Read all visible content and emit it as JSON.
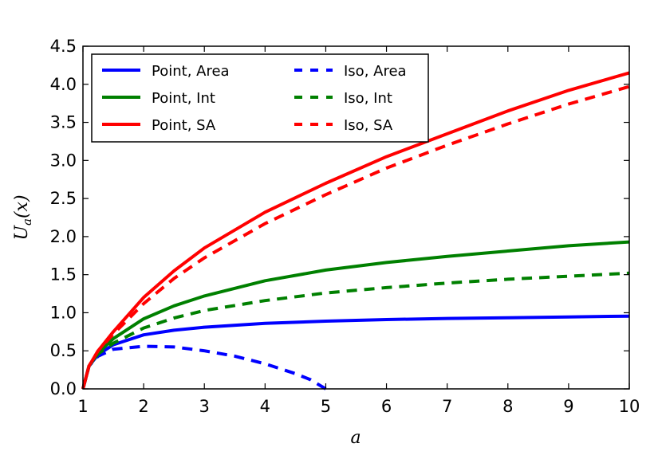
{
  "chart_data": {
    "type": "line",
    "title": "",
    "xlabel": "a",
    "ylabel": {
      "main": "U",
      "sub": "a",
      "arg": "(x)"
    },
    "xlim": [
      1,
      10
    ],
    "ylim": [
      0,
      4.5
    ],
    "xticks": [
      1,
      2,
      3,
      4,
      5,
      6,
      7,
      8,
      9,
      10
    ],
    "yticks": [
      "0.0",
      "0.5",
      "1.0",
      "1.5",
      "2.0",
      "2.5",
      "3.0",
      "3.5",
      "4.0",
      "4.5"
    ],
    "grid": false,
    "legend_position": "top-left",
    "series": [
      {
        "name": "Point, Area",
        "color": "#0000ff",
        "dash": "solid",
        "x": [
          1,
          1.1,
          1.25,
          1.5,
          2,
          2.5,
          3,
          4,
          5,
          6,
          7,
          8,
          9,
          10
        ],
        "y": [
          0,
          0.3,
          0.45,
          0.58,
          0.71,
          0.77,
          0.81,
          0.86,
          0.89,
          0.91,
          0.925,
          0.935,
          0.945,
          0.955
        ]
      },
      {
        "name": "Point, Int",
        "color": "#008000",
        "dash": "solid",
        "x": [
          1,
          1.1,
          1.25,
          1.5,
          2,
          2.5,
          3,
          4,
          5,
          6,
          7,
          8,
          9,
          10
        ],
        "y": [
          0,
          0.3,
          0.47,
          0.66,
          0.92,
          1.09,
          1.22,
          1.42,
          1.56,
          1.66,
          1.74,
          1.81,
          1.88,
          1.93
        ]
      },
      {
        "name": "Point, SA",
        "color": "#ff0000",
        "dash": "solid",
        "x": [
          1,
          1.1,
          1.25,
          1.5,
          2,
          2.5,
          3,
          4,
          5,
          6,
          7,
          8,
          9,
          10
        ],
        "y": [
          0,
          0.3,
          0.5,
          0.75,
          1.2,
          1.55,
          1.85,
          2.32,
          2.7,
          3.05,
          3.35,
          3.65,
          3.92,
          4.15
        ]
      },
      {
        "name": "Iso, Area",
        "color": "#0000ff",
        "dash": "dashed",
        "x": [
          1,
          1.1,
          1.25,
          1.5,
          2,
          2.5,
          3,
          3.5,
          4,
          4.5,
          4.75,
          5
        ],
        "y": [
          0,
          0.3,
          0.43,
          0.52,
          0.56,
          0.55,
          0.5,
          0.43,
          0.33,
          0.2,
          0.12,
          0
        ]
      },
      {
        "name": "Iso, Int",
        "color": "#008000",
        "dash": "dashed",
        "x": [
          1,
          1.1,
          1.25,
          1.5,
          2,
          2.5,
          3,
          4,
          5,
          6,
          7,
          8,
          9,
          10
        ],
        "y": [
          0,
          0.3,
          0.46,
          0.6,
          0.8,
          0.93,
          1.03,
          1.16,
          1.26,
          1.33,
          1.39,
          1.44,
          1.48,
          1.52
        ]
      },
      {
        "name": "Iso, SA",
        "color": "#ff0000",
        "dash": "dashed",
        "x": [
          1,
          1.1,
          1.25,
          1.5,
          2,
          2.5,
          3,
          4,
          5,
          6,
          7,
          8,
          9,
          10
        ],
        "y": [
          0,
          0.3,
          0.5,
          0.72,
          1.12,
          1.45,
          1.72,
          2.17,
          2.55,
          2.9,
          3.2,
          3.48,
          3.74,
          3.97
        ]
      }
    ]
  }
}
